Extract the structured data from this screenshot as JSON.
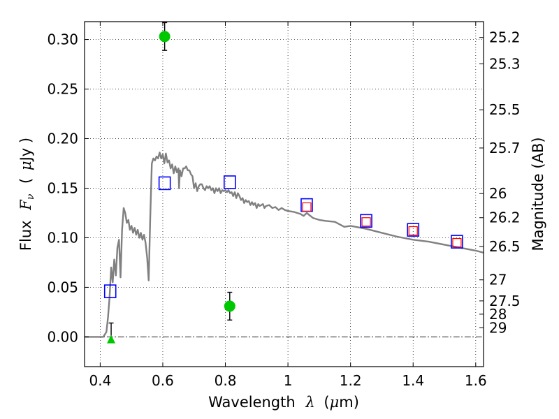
{
  "chart_data": {
    "type": "scatter",
    "xlabel": "Wavelength",
    "xlabel_symbol": "λ",
    "xlabel_unit_open": "(",
    "xlabel_unit_mu": "μ",
    "xlabel_unit_rest": "m)",
    "ylabel": "Flux",
    "ylabel_symbol": "F",
    "ylabel_sub": "ν",
    "ylabel_unit_open": "(",
    "ylabel_unit_mu": "μ",
    "ylabel_unit_rest": "Jy )",
    "y2label": "Magnitude (AB)",
    "xlim": [
      0.35,
      1.625
    ],
    "ylim": [
      -0.03,
      0.318
    ],
    "grid": true,
    "x_ticks": [
      {
        "value": 0.4,
        "label": "0.4"
      },
      {
        "value": 0.6,
        "label": "0.6"
      },
      {
        "value": 0.8,
        "label": "0.8"
      },
      {
        "value": 1.0,
        "label": "1"
      },
      {
        "value": 1.2,
        "label": "1.2"
      },
      {
        "value": 1.4,
        "label": "1.4"
      },
      {
        "value": 1.6,
        "label": "1.6"
      }
    ],
    "y_ticks": [
      {
        "value": 0.0,
        "label": "0.00"
      },
      {
        "value": 0.05,
        "label": "0.05"
      },
      {
        "value": 0.1,
        "label": "0.10"
      },
      {
        "value": 0.15,
        "label": "0.15"
      },
      {
        "value": 0.2,
        "label": "0.20"
      },
      {
        "value": 0.25,
        "label": "0.25"
      },
      {
        "value": 0.3,
        "label": "0.30"
      }
    ],
    "mag_ticks": [
      {
        "value": 25.2,
        "label": "25.2"
      },
      {
        "value": 25.3,
        "label": "25.3"
      },
      {
        "value": 25.5,
        "label": "25.5"
      },
      {
        "value": 25.7,
        "label": "25.7"
      },
      {
        "value": 26.0,
        "label": "26"
      },
      {
        "value": 26.2,
        "label": "26.2"
      },
      {
        "value": 26.5,
        "label": "26.5"
      },
      {
        "value": 27.0,
        "label": "27"
      },
      {
        "value": 27.5,
        "label": "27.5"
      },
      {
        "value": 28.0,
        "label": "28"
      },
      {
        "value": 29.0,
        "label": "29"
      }
    ],
    "model_sed": {
      "color": "#808080",
      "points": [
        [
          0.35,
          0.0
        ],
        [
          0.41,
          0.0
        ],
        [
          0.42,
          0.005
        ],
        [
          0.425,
          0.02
        ],
        [
          0.43,
          0.04
        ],
        [
          0.435,
          0.07
        ],
        [
          0.44,
          0.055
        ],
        [
          0.445,
          0.078
        ],
        [
          0.45,
          0.062
        ],
        [
          0.455,
          0.09
        ],
        [
          0.46,
          0.098
        ],
        [
          0.465,
          0.06
        ],
        [
          0.47,
          0.108
        ],
        [
          0.475,
          0.13
        ],
        [
          0.48,
          0.125
        ],
        [
          0.485,
          0.115
        ],
        [
          0.49,
          0.118
        ],
        [
          0.495,
          0.108
        ],
        [
          0.5,
          0.112
        ],
        [
          0.505,
          0.105
        ],
        [
          0.51,
          0.11
        ],
        [
          0.515,
          0.103
        ],
        [
          0.52,
          0.108
        ],
        [
          0.525,
          0.1
        ],
        [
          0.53,
          0.105
        ],
        [
          0.535,
          0.098
        ],
        [
          0.54,
          0.103
        ],
        [
          0.545,
          0.095
        ],
        [
          0.55,
          0.08
        ],
        [
          0.555,
          0.057
        ],
        [
          0.56,
          0.12
        ],
        [
          0.565,
          0.175
        ],
        [
          0.57,
          0.18
        ],
        [
          0.575,
          0.178
        ],
        [
          0.58,
          0.182
        ],
        [
          0.585,
          0.18
        ],
        [
          0.59,
          0.186
        ],
        [
          0.595,
          0.18
        ],
        [
          0.6,
          0.184
        ],
        [
          0.605,
          0.175
        ],
        [
          0.61,
          0.185
        ],
        [
          0.615,
          0.176
        ],
        [
          0.62,
          0.178
        ],
        [
          0.625,
          0.17
        ],
        [
          0.63,
          0.174
        ],
        [
          0.635,
          0.165
        ],
        [
          0.64,
          0.172
        ],
        [
          0.645,
          0.166
        ],
        [
          0.65,
          0.17
        ],
        [
          0.652,
          0.15
        ],
        [
          0.655,
          0.168
        ],
        [
          0.66,
          0.162
        ],
        [
          0.665,
          0.17
        ],
        [
          0.67,
          0.17
        ],
        [
          0.675,
          0.172
        ],
        [
          0.68,
          0.168
        ],
        [
          0.685,
          0.168
        ],
        [
          0.69,
          0.164
        ],
        [
          0.695,
          0.162
        ],
        [
          0.7,
          0.15
        ],
        [
          0.705,
          0.155
        ],
        [
          0.71,
          0.147
        ],
        [
          0.715,
          0.152
        ],
        [
          0.72,
          0.154
        ],
        [
          0.725,
          0.154
        ],
        [
          0.73,
          0.15
        ],
        [
          0.735,
          0.148
        ],
        [
          0.74,
          0.152
        ],
        [
          0.745,
          0.15
        ],
        [
          0.75,
          0.152
        ],
        [
          0.755,
          0.148
        ],
        [
          0.76,
          0.15
        ],
        [
          0.765,
          0.145
        ],
        [
          0.77,
          0.15
        ],
        [
          0.775,
          0.147
        ],
        [
          0.78,
          0.15
        ],
        [
          0.785,
          0.145
        ],
        [
          0.79,
          0.148
        ],
        [
          0.795,
          0.147
        ],
        [
          0.8,
          0.148
        ],
        [
          0.805,
          0.146
        ],
        [
          0.81,
          0.148
        ],
        [
          0.815,
          0.145
        ],
        [
          0.82,
          0.146
        ],
        [
          0.825,
          0.142
        ],
        [
          0.83,
          0.146
        ],
        [
          0.835,
          0.14
        ],
        [
          0.84,
          0.145
        ],
        [
          0.845,
          0.142
        ],
        [
          0.85,
          0.138
        ],
        [
          0.855,
          0.14
        ],
        [
          0.86,
          0.135
        ],
        [
          0.865,
          0.138
        ],
        [
          0.87,
          0.136
        ],
        [
          0.875,
          0.137
        ],
        [
          0.88,
          0.133
        ],
        [
          0.885,
          0.136
        ],
        [
          0.89,
          0.133
        ],
        [
          0.895,
          0.135
        ],
        [
          0.9,
          0.13
        ],
        [
          0.905,
          0.134
        ],
        [
          0.91,
          0.132
        ],
        [
          0.92,
          0.134
        ],
        [
          0.925,
          0.13
        ],
        [
          0.93,
          0.132
        ],
        [
          0.94,
          0.133
        ],
        [
          0.95,
          0.13
        ],
        [
          0.96,
          0.131
        ],
        [
          0.97,
          0.128
        ],
        [
          0.98,
          0.13
        ],
        [
          0.99,
          0.128
        ],
        [
          1.0,
          0.127
        ],
        [
          1.02,
          0.126
        ],
        [
          1.04,
          0.124
        ],
        [
          1.05,
          0.122
        ],
        [
          1.06,
          0.125
        ],
        [
          1.08,
          0.12
        ],
        [
          1.1,
          0.118
        ],
        [
          1.12,
          0.117
        ],
        [
          1.15,
          0.116
        ],
        [
          1.18,
          0.111
        ],
        [
          1.2,
          0.112
        ],
        [
          1.25,
          0.109
        ],
        [
          1.3,
          0.105
        ],
        [
          1.35,
          0.101
        ],
        [
          1.4,
          0.098
        ],
        [
          1.45,
          0.096
        ],
        [
          1.5,
          0.093
        ],
        [
          1.55,
          0.09
        ],
        [
          1.6,
          0.087
        ],
        [
          1.625,
          0.085
        ]
      ]
    },
    "model_photometry": {
      "marker": "square",
      "color": "#0000ff",
      "points": [
        {
          "x": 0.432,
          "y": 0.046
        },
        {
          "x": 0.606,
          "y": 0.155
        },
        {
          "x": 0.814,
          "y": 0.156
        },
        {
          "x": 1.06,
          "y": 0.133
        },
        {
          "x": 1.25,
          "y": 0.117
        },
        {
          "x": 1.4,
          "y": 0.108
        },
        {
          "x": 1.54,
          "y": 0.096
        }
      ]
    },
    "observed_photometry_red": {
      "marker": "square",
      "color": "#ff0000",
      "points": [
        {
          "x": 1.06,
          "y": 0.131
        },
        {
          "x": 1.25,
          "y": 0.116
        },
        {
          "x": 1.4,
          "y": 0.107
        },
        {
          "x": 1.54,
          "y": 0.095
        }
      ]
    },
    "observed_photometry_green": {
      "marker": "circle",
      "color": "#00c800",
      "points": [
        {
          "x": 0.606,
          "y": 0.303,
          "err": 0.014
        },
        {
          "x": 0.814,
          "y": 0.031,
          "err": 0.014
        }
      ]
    },
    "upper_limit": {
      "marker": "triangle",
      "color": "#00c800",
      "x": 0.435,
      "y": -0.003,
      "err_low": -0.003,
      "err_high": 0.014
    }
  }
}
